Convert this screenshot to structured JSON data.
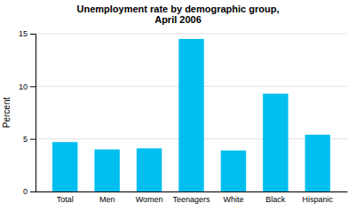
{
  "chart_data": {
    "type": "bar",
    "title": "Unemployment rate by demographic group,\nApril 2006",
    "ylabel": "Percent",
    "categories": [
      "Total",
      "Men",
      "Women",
      "Teenagers",
      "White",
      "Black",
      "Hispanic"
    ],
    "values": [
      4.7,
      4.0,
      4.1,
      14.5,
      3.9,
      9.3,
      5.4
    ],
    "color": "#00BFEF",
    "ylim": [
      0,
      15
    ],
    "yticks": [
      0,
      5,
      10,
      15
    ],
    "grid": true
  }
}
